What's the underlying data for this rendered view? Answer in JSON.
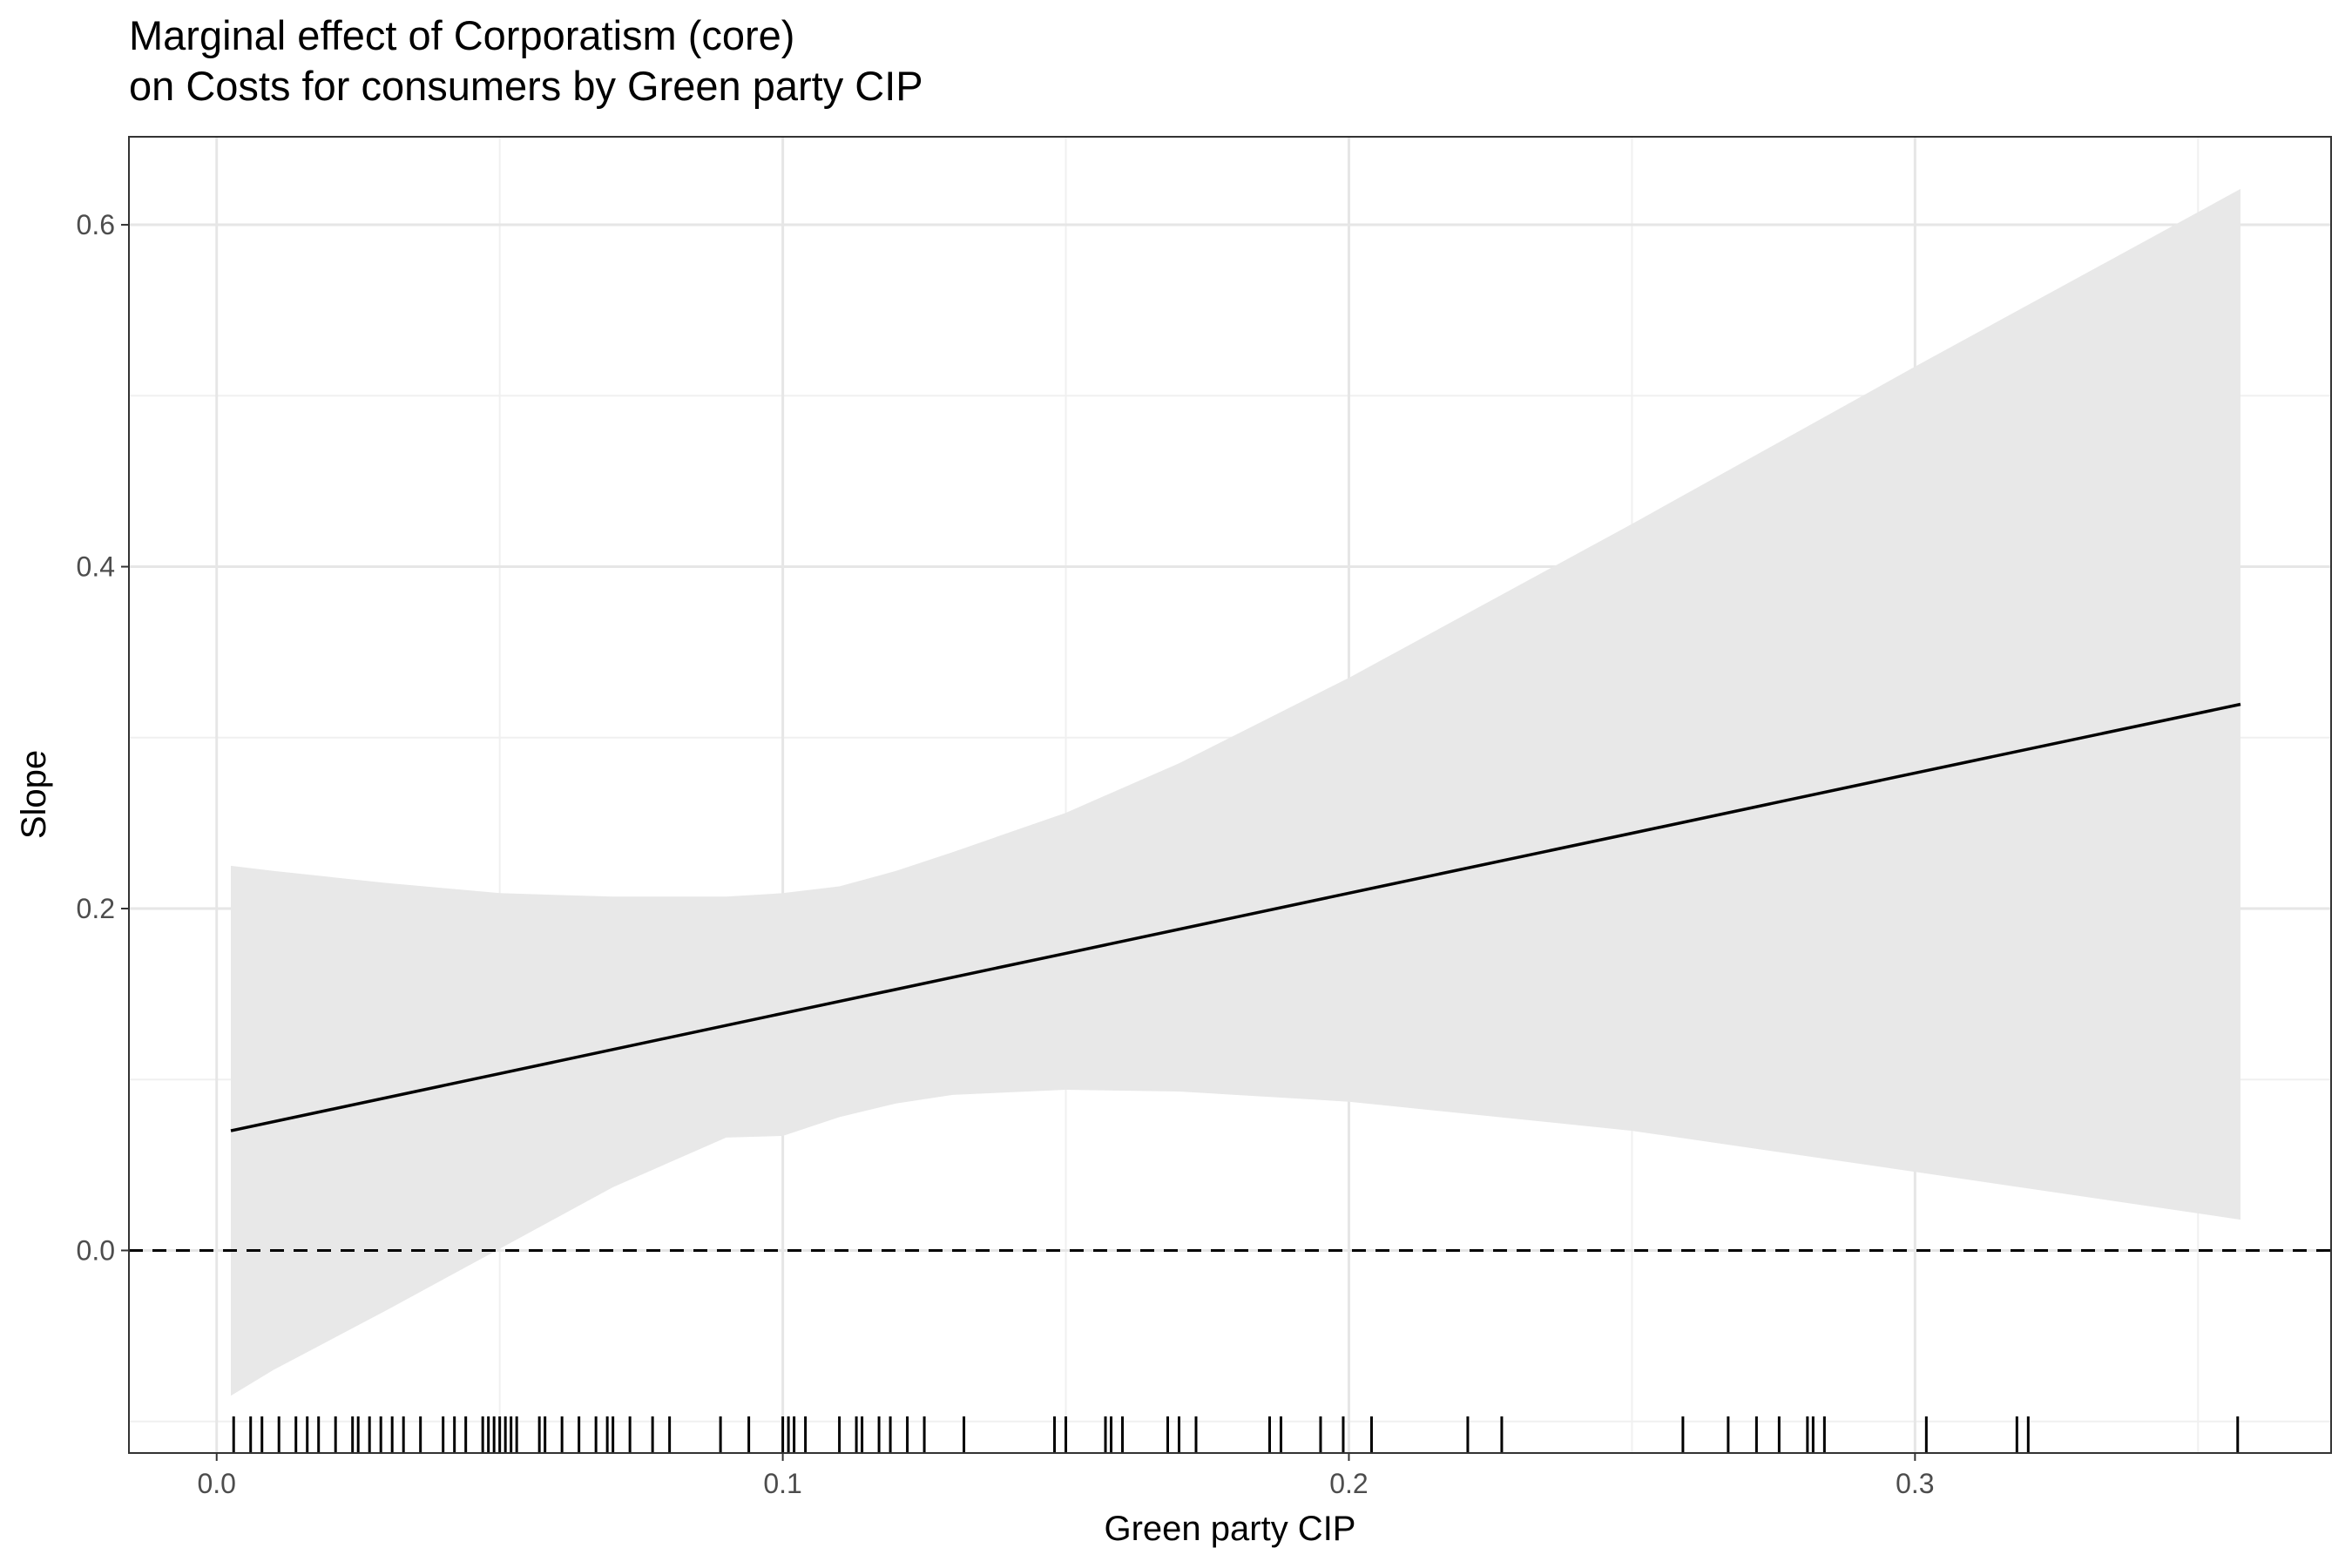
{
  "chart_data": {
    "type": "line",
    "title": "Marginal effect of Corporatism (core)",
    "subtitle": "on Costs for consumers by Green party CIP",
    "xlabel": "Green party CIP",
    "ylabel": "Slope",
    "xlim": [
      -0.0155,
      0.3735
    ],
    "ylim": [
      -0.1185,
      0.6515
    ],
    "x_ticks": [
      0.0,
      0.1,
      0.2,
      0.3
    ],
    "x_tick_labels": [
      "0.0",
      "0.1",
      "0.2",
      "0.3"
    ],
    "y_ticks": [
      0.0,
      0.2,
      0.4,
      0.6
    ],
    "y_tick_labels": [
      "0.0",
      "0.2",
      "0.4",
      "0.6"
    ],
    "grid": true,
    "legend": "none",
    "series": [
      {
        "x": [
          0.0025,
          0.05,
          0.1,
          0.15,
          0.2,
          0.25,
          0.3,
          0.3575
        ],
        "values": [
          0.07,
          0.1035,
          0.1387,
          0.1738,
          0.209,
          0.2441,
          0.2793,
          0.3195
        ]
      }
    ],
    "confidence_band": {
      "x": [
        0.0025,
        0.01,
        0.03,
        0.05,
        0.07,
        0.09,
        0.1,
        0.11,
        0.12,
        0.13,
        0.15,
        0.17,
        0.2,
        0.25,
        0.3,
        0.3575
      ],
      "lower": [
        -0.085,
        -0.07,
        -0.035,
        0.001,
        0.037,
        0.066,
        0.067,
        0.078,
        0.086,
        0.091,
        0.094,
        0.093,
        0.087,
        0.07,
        0.046,
        0.018
      ],
      "upper": [
        0.225,
        0.222,
        0.215,
        0.209,
        0.207,
        0.207,
        0.209,
        0.213,
        0.222,
        0.233,
        0.256,
        0.285,
        0.335,
        0.425,
        0.517,
        0.621
      ]
    },
    "reference_line": {
      "y": 0,
      "style": "dashed"
    },
    "rug_x": [
      0.003,
      0.006,
      0.008,
      0.011,
      0.014,
      0.016,
      0.018,
      0.021,
      0.024,
      0.025,
      0.027,
      0.029,
      0.031,
      0.033,
      0.036,
      0.04,
      0.042,
      0.044,
      0.047,
      0.048,
      0.049,
      0.05,
      0.051,
      0.052,
      0.053,
      0.057,
      0.058,
      0.061,
      0.064,
      0.067,
      0.069,
      0.07,
      0.073,
      0.077,
      0.08,
      0.089,
      0.094,
      0.1,
      0.101,
      0.102,
      0.104,
      0.11,
      0.113,
      0.114,
      0.117,
      0.119,
      0.122,
      0.125,
      0.132,
      0.148,
      0.15,
      0.157,
      0.158,
      0.16,
      0.168,
      0.17,
      0.173,
      0.186,
      0.188,
      0.195,
      0.199,
      0.204,
      0.221,
      0.227,
      0.259,
      0.267,
      0.272,
      0.276,
      0.281,
      0.282,
      0.284,
      0.302,
      0.318,
      0.32,
      0.357
    ]
  }
}
